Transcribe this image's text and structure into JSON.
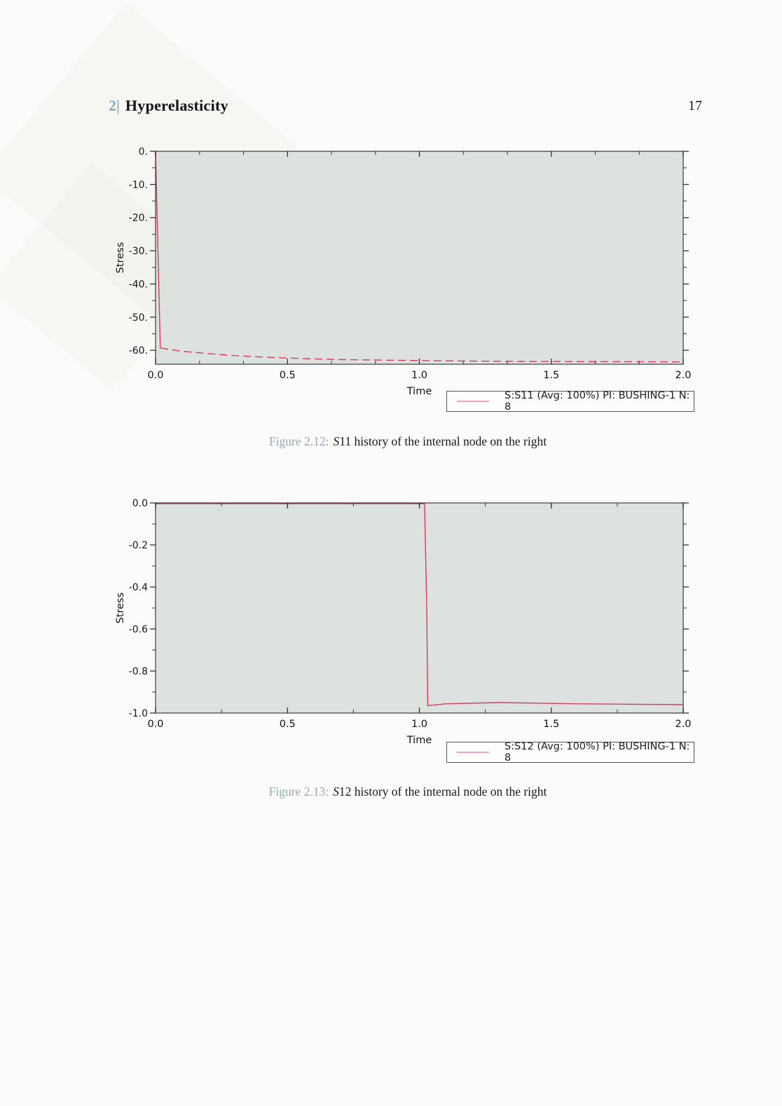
{
  "page": {
    "header_number": "2|",
    "header_title": "Hyperelasticity",
    "page_number": "17"
  },
  "colors": {
    "curve": "#d63a62",
    "legend_sample": "#e9a4b8",
    "plot_bg": "#dde2df",
    "accent_blue": "#8fa9b6"
  },
  "figures": [
    {
      "caption_label": "Figure 2.12:",
      "caption_var": "S",
      "caption_rest": "11 history of the internal node on the right"
    },
    {
      "caption_label": "Figure 2.13:",
      "caption_var": "S",
      "caption_rest": "12 history of the internal node on the right"
    }
  ],
  "chart_data": [
    {
      "type": "line",
      "title": "",
      "xlabel": "Time",
      "ylabel": "Stress",
      "xlim": [
        0,
        2.0
      ],
      "ylim": [
        0,
        -64.2
      ],
      "grid": false,
      "legend_position": "below-right",
      "xticks": [
        {
          "v": 0.0,
          "label": "0.0"
        },
        {
          "v": 0.5,
          "label": "0.5"
        },
        {
          "v": 1.0,
          "label": "1.0"
        },
        {
          "v": 1.5,
          "label": "1.5"
        },
        {
          "v": 2.0,
          "label": "2.0"
        }
      ],
      "yticks": [
        {
          "v": 0,
          "label": "0."
        },
        {
          "v": -10,
          "label": "-10."
        },
        {
          "v": -20,
          "label": "-20."
        },
        {
          "v": -30,
          "label": "-30."
        },
        {
          "v": -40,
          "label": "-40."
        },
        {
          "v": -50,
          "label": "-50."
        },
        {
          "v": -60,
          "label": "-60."
        }
      ],
      "xminor": 0.1666667,
      "yminor": 5,
      "series": [
        {
          "name": "S:S11 (Avg: 100%) PI: BUSHING-1 N: 8",
          "color": "#d63a62",
          "segments": [
            {
              "dash": false,
              "points": [
                [
                  0,
                  0
                ],
                [
                  0.018,
                  -59.3
                ]
              ]
            },
            {
              "dash": true,
              "points": [
                [
                  0.018,
                  -59.3
                ],
                [
                  0.1,
                  -60.3
                ],
                [
                  0.2,
                  -61.0
                ],
                [
                  0.3,
                  -61.6
                ],
                [
                  0.4,
                  -62.0
                ],
                [
                  0.5,
                  -62.35
                ],
                [
                  0.6,
                  -62.6
                ],
                [
                  0.7,
                  -62.8
                ],
                [
                  0.8,
                  -62.9
                ],
                [
                  0.9,
                  -63.0
                ],
                [
                  1.0,
                  -63.1
                ],
                [
                  1.2,
                  -63.25
                ],
                [
                  1.4,
                  -63.35
                ],
                [
                  1.6,
                  -63.4
                ],
                [
                  1.8,
                  -63.45
                ],
                [
                  2.0,
                  -63.5
                ]
              ]
            }
          ]
        }
      ]
    },
    {
      "type": "line",
      "title": "",
      "xlabel": "Time",
      "ylabel": "Stress",
      "xlim": [
        0,
        2.0
      ],
      "ylim": [
        0,
        -1.0
      ],
      "grid": false,
      "legend_position": "below-right",
      "xticks": [
        {
          "v": 0.0,
          "label": "0.0"
        },
        {
          "v": 0.5,
          "label": "0.5"
        },
        {
          "v": 1.0,
          "label": "1.0"
        },
        {
          "v": 1.5,
          "label": "1.5"
        },
        {
          "v": 2.0,
          "label": "2.0"
        }
      ],
      "yticks": [
        {
          "v": 0,
          "label": "0.0"
        },
        {
          "v": -0.2,
          "label": "-0.2"
        },
        {
          "v": -0.4,
          "label": "-0.4"
        },
        {
          "v": -0.6,
          "label": "-0.6"
        },
        {
          "v": -0.8,
          "label": "-0.8"
        },
        {
          "v": -1.0,
          "label": "-1.0"
        }
      ],
      "xminor": 0.25,
      "yminor": 0.1,
      "series": [
        {
          "name": "S:S12 (Avg: 100%) PI: BUSHING-1 N: 8",
          "color": "#d63a62",
          "segments": [
            {
              "dash": false,
              "points": [
                [
                  0,
                  -0.004
                ],
                [
                  1.02,
                  -0.004
                ],
                [
                  1.028,
                  -0.5
                ],
                [
                  1.032,
                  -0.965
                ],
                [
                  1.1,
                  -0.956
                ],
                [
                  1.3,
                  -0.95
                ],
                [
                  1.6,
                  -0.956
                ],
                [
                  2.0,
                  -0.96
                ]
              ]
            }
          ]
        }
      ]
    }
  ]
}
